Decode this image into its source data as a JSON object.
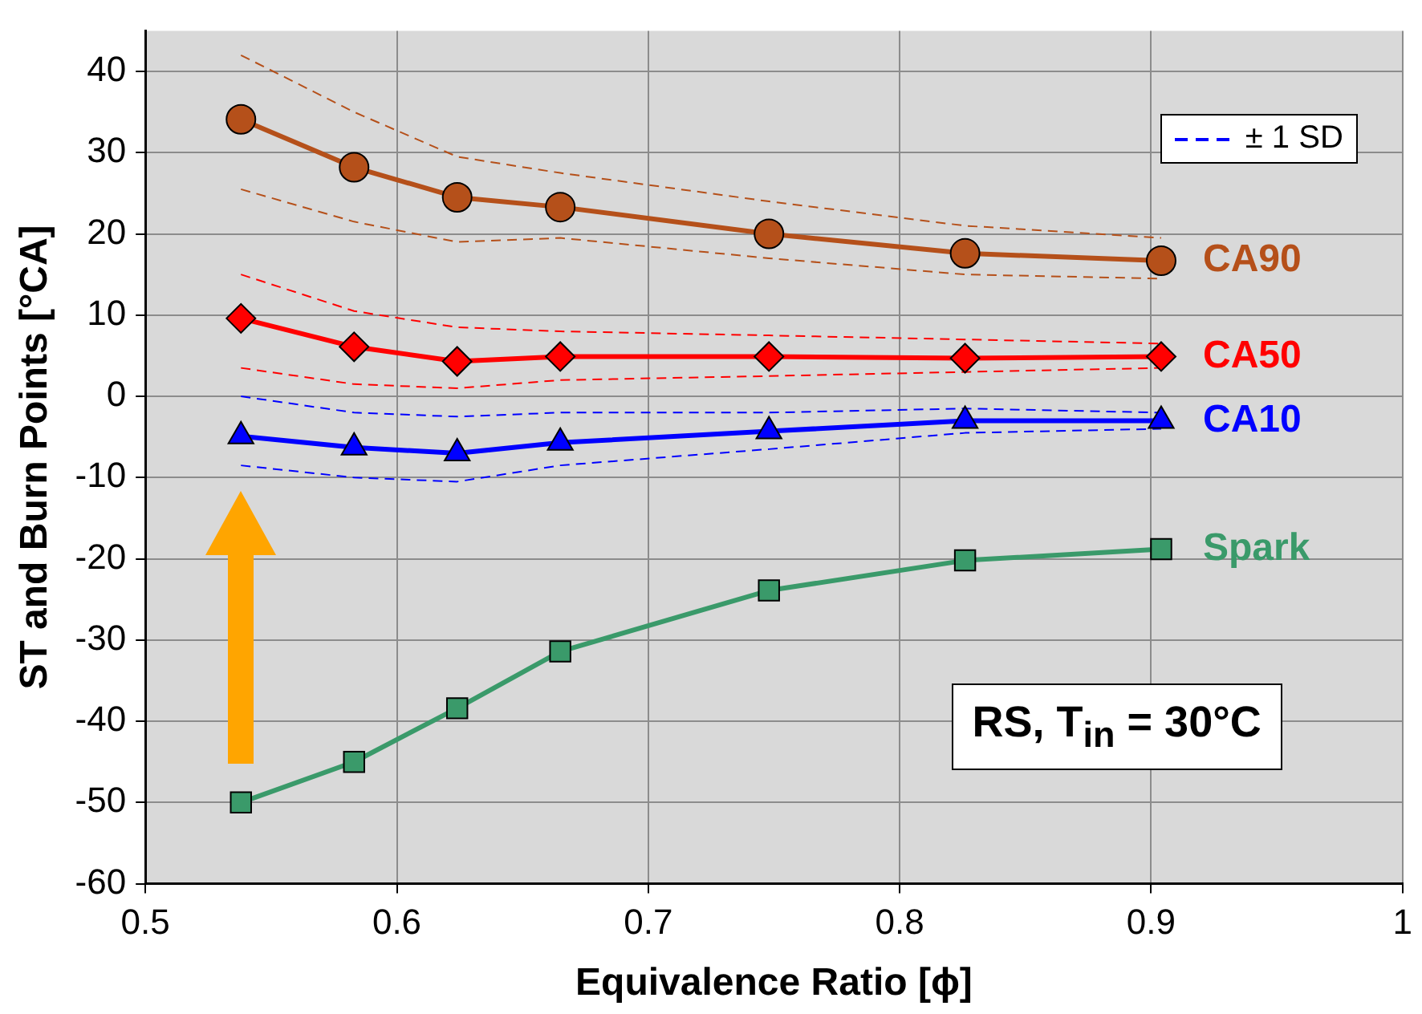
{
  "chart_data": {
    "type": "line",
    "xlabel": "Equivalence Ratio [ϕ]",
    "ylabel": "ST and Burn Points [°CA]",
    "x": [
      0.538,
      0.583,
      0.624,
      0.665,
      0.748,
      0.826,
      0.904
    ],
    "series": [
      {
        "name": "CA90",
        "color": "#b5501a",
        "marker": "circle",
        "values": [
          34.1,
          28.2,
          24.5,
          23.3,
          20,
          17.6,
          16.7
        ]
      },
      {
        "name": "CA50",
        "color": "#ff0000",
        "marker": "diamond",
        "values": [
          9.6,
          6.1,
          4.3,
          4.9,
          4.9,
          4.7,
          4.9
        ]
      },
      {
        "name": "CA10",
        "color": "#0000ff",
        "marker": "triangle",
        "values": [
          -4.9,
          -6.3,
          -7,
          -5.7,
          -4.3,
          -3,
          -3
        ]
      },
      {
        "name": "Spark",
        "color": "#3a9a6a",
        "marker": "square",
        "values": [
          -50,
          -45,
          -38.4,
          -31.4,
          -23.9,
          -20.2,
          -18.8
        ]
      },
      {
        "color": "#b5501a",
        "line_style": "dashed",
        "values": [
          42,
          35,
          29.5,
          27.5,
          24,
          21,
          19.5
        ]
      },
      {
        "color": "#b5501a",
        "line_style": "dashed",
        "values": [
          25.5,
          21.5,
          19,
          19.5,
          17,
          15,
          14.5
        ]
      },
      {
        "color": "#ff0000",
        "line_style": "dashed",
        "values": [
          15,
          10.5,
          8.5,
          8,
          7.5,
          7,
          6.5
        ]
      },
      {
        "color": "#ff0000",
        "line_style": "dashed",
        "values": [
          3.5,
          1.5,
          1,
          2,
          2.5,
          3,
          3.5
        ]
      },
      {
        "color": "#0000ff",
        "line_style": "dashed",
        "values": [
          0,
          -2,
          -2.5,
          -2,
          -2,
          -1.5,
          -2
        ]
      },
      {
        "color": "#0000ff",
        "line_style": "dashed",
        "values": [
          -8.5,
          -10,
          -10.5,
          -8.5,
          -6.5,
          -4.5,
          -4
        ]
      }
    ],
    "xlim": [
      0.5,
      1
    ],
    "xticks": [
      0.5,
      0.6,
      0.7,
      0.8,
      0.9,
      1
    ],
    "ylim": [
      -60,
      45
    ],
    "yticks": [
      -60,
      -50,
      -40,
      -30,
      -20,
      -10,
      0,
      10,
      20,
      30,
      40
    ],
    "grid": true,
    "annotations": [
      "± 1 SD",
      "RS, T$_{in}$ = 30°C"
    ]
  }
}
